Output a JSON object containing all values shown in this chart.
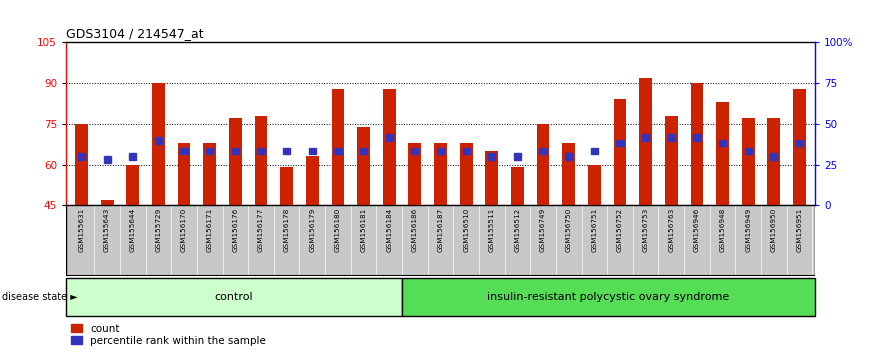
{
  "title": "GDS3104 / 214547_at",
  "samples": [
    "GSM155631",
    "GSM155643",
    "GSM155644",
    "GSM155729",
    "GSM156170",
    "GSM156171",
    "GSM156176",
    "GSM156177",
    "GSM156178",
    "GSM156179",
    "GSM156180",
    "GSM156181",
    "GSM156184",
    "GSM156186",
    "GSM156187",
    "GSM156510",
    "GSM155511",
    "GSM156512",
    "GSM156749",
    "GSM156750",
    "GSM156751",
    "GSM156752",
    "GSM156753",
    "GSM156763",
    "GSM156946",
    "GSM156948",
    "GSM156949",
    "GSM156950",
    "GSM156951"
  ],
  "bar_heights": [
    75,
    47,
    60,
    90,
    68,
    68,
    77,
    78,
    59,
    63,
    88,
    74,
    88,
    68,
    68,
    68,
    65,
    59,
    75,
    68,
    60,
    84,
    92,
    78,
    90,
    83,
    77,
    77,
    88
  ],
  "percentile_values": [
    63,
    62,
    63,
    69,
    65,
    65,
    65,
    65,
    65,
    65,
    65,
    65,
    70,
    65,
    65,
    65,
    63,
    63,
    65,
    63,
    65,
    68,
    70,
    70,
    70,
    68,
    65,
    63,
    68
  ],
  "control_count": 13,
  "disease_count": 16,
  "control_label": "control",
  "disease_label": "insulin-resistant polycystic ovary syndrome",
  "disease_state_label": "disease state",
  "ymin": 45,
  "ymax": 105,
  "yticks_left": [
    45,
    60,
    75,
    90,
    105
  ],
  "yticks_right": [
    0,
    25,
    50,
    75,
    100
  ],
  "ytick_right_labels": [
    "0",
    "25",
    "50",
    "75",
    "100%"
  ],
  "bar_color": "#cc2200",
  "blue_color": "#3333bb",
  "label_bg": "#c8c8c8",
  "control_bg": "#ccffcc",
  "disease_bg": "#55dd55",
  "legend_count_label": "count",
  "legend_pct_label": "percentile rank within the sample"
}
